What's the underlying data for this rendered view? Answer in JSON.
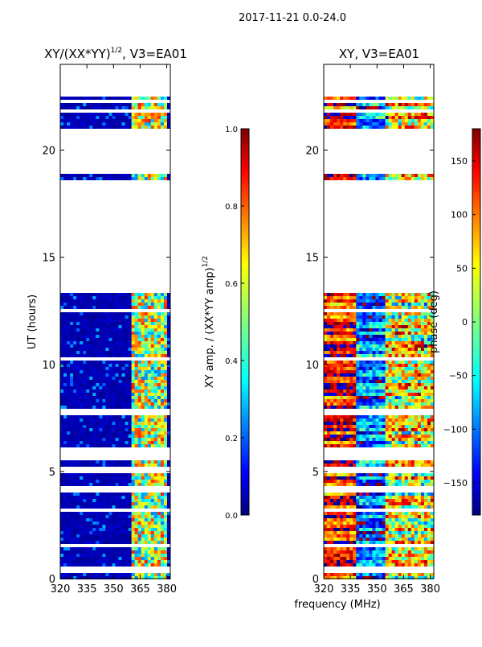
{
  "figure": {
    "suptitle": "2017-11-21 0.0-24.0",
    "shared_xlabel": "frequency (MHz)"
  },
  "chart_data": [
    {
      "type": "heatmap",
      "title_main": "XY/(XX*YY)",
      "title_sup": "1/2",
      "title_rest": ", V3=EA01",
      "xlabel": "",
      "ylabel": "UT (hours)",
      "xlim": [
        320,
        382
      ],
      "ylim": [
        0,
        24
      ],
      "xticks": [
        320,
        335,
        350,
        365,
        380
      ],
      "yticks": [
        0,
        5,
        10,
        15,
        20
      ],
      "colormap": "jet",
      "colorbar": {
        "label_main": "XY amp. / (XX*YY amp)",
        "label_sup": "1/2",
        "range": [
          0.0,
          1.0
        ],
        "ticks": [
          "0.0",
          "0.2",
          "0.4",
          "0.6",
          "0.8",
          "1.0"
        ]
      },
      "description_bands": "low amplitude (dark blue) over 320-360 MHz, variable higher amplitude over 360-380 MHz"
    },
    {
      "type": "heatmap",
      "title_main": "XY, V3=EA01",
      "xlabel": "",
      "ylabel": "",
      "xlim": [
        320,
        382
      ],
      "ylim": [
        0,
        24
      ],
      "xticks": [
        320,
        335,
        350,
        365,
        380
      ],
      "yticks": [
        0,
        5,
        10,
        15,
        20
      ],
      "colormap": "jet",
      "colorbar": {
        "label_main": "phase (deg)",
        "range": [
          -180,
          180
        ],
        "ticks": [
          "−150",
          "−100",
          "−50",
          "0",
          "50",
          "100",
          "150"
        ],
        "tick_values": [
          -150,
          -100,
          -50,
          0,
          50,
          100,
          150
        ]
      }
    }
  ],
  "data_gaps_ut_hours": [
    [
      22.6,
      24.0
    ],
    [
      20.6,
      21.0
    ],
    [
      18.9,
      20.6
    ],
    [
      13.4,
      18.5
    ],
    [
      12.45,
      12.6
    ],
    [
      5.75,
      6.1
    ]
  ],
  "colors": {
    "jet": [
      "#00007f",
      "#0000ff",
      "#007fff",
      "#00ffff",
      "#7fff7f",
      "#ffff00",
      "#ff7f00",
      "#ff0000",
      "#7f0000"
    ]
  }
}
